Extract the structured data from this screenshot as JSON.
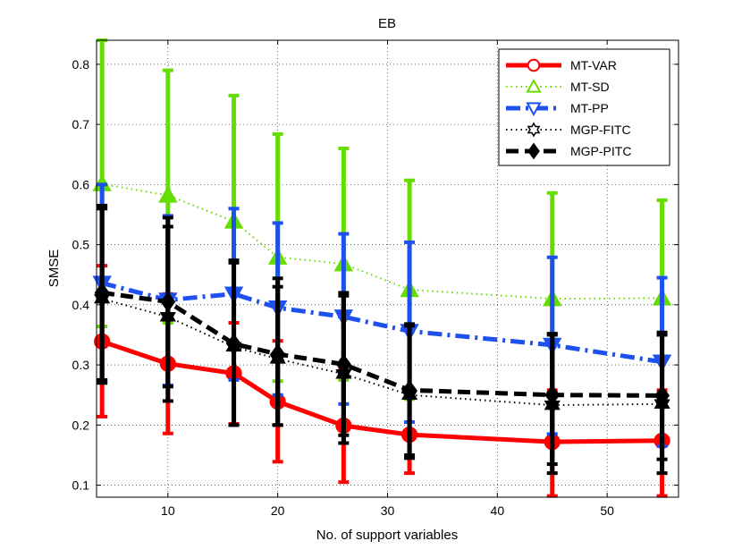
{
  "chart_data": {
    "type": "line",
    "title": "EB",
    "xlabel": "No. of support variables",
    "ylabel": "SMSE",
    "xlim": [
      3.5,
      56.5
    ],
    "ylim": [
      0.08,
      0.84
    ],
    "xticks": [
      10,
      20,
      30,
      40,
      50
    ],
    "yticks": [
      0.1,
      0.2,
      0.3,
      0.4,
      0.5,
      0.6,
      0.7,
      0.8
    ],
    "grid": true,
    "legend_position": "top-right",
    "x": [
      4,
      10,
      16,
      20,
      26,
      32,
      45,
      55
    ],
    "series": [
      {
        "name": "MT-VAR",
        "color": "#ff0000",
        "dash": "solid",
        "marker": "circle",
        "values": [
          0.339,
          0.302,
          0.286,
          0.239,
          0.199,
          0.184,
          0.172,
          0.174
        ],
        "err_low": [
          0.214,
          0.186,
          0.202,
          0.139,
          0.105,
          0.12,
          0.082,
          0.082
        ],
        "err_high": [
          0.465,
          0.418,
          0.37,
          0.34,
          0.295,
          0.25,
          0.258,
          0.258
        ]
      },
      {
        "name": "MT-SD",
        "color": "#66dd00",
        "dash": "dotted",
        "marker": "triangle-up",
        "values": [
          0.601,
          0.582,
          0.539,
          0.479,
          0.468,
          0.425,
          0.41,
          0.411
        ],
        "err_low": [
          0.364,
          0.37,
          0.332,
          0.273,
          0.275,
          0.243,
          0.235,
          0.25
        ],
        "err_high": [
          0.84,
          0.79,
          0.748,
          0.684,
          0.66,
          0.607,
          0.586,
          0.574
        ]
      },
      {
        "name": "MT-PP",
        "color": "#1e50f0",
        "dash": "dashdot",
        "marker": "triangle-down",
        "values": [
          0.436,
          0.408,
          0.418,
          0.395,
          0.38,
          0.356,
          0.333,
          0.305
        ],
        "err_low": [
          0.272,
          0.266,
          0.275,
          0.25,
          0.235,
          0.205,
          0.185,
          0.165
        ],
        "err_high": [
          0.6,
          0.548,
          0.56,
          0.536,
          0.518,
          0.504,
          0.479,
          0.445
        ]
      },
      {
        "name": "MGP-FITC",
        "color": "#000000",
        "dash": "dotted",
        "marker": "hexagram",
        "values": [
          0.41,
          0.38,
          0.33,
          0.31,
          0.285,
          0.25,
          0.233,
          0.235
        ],
        "err_low": [
          0.27,
          0.24,
          0.2,
          0.2,
          0.17,
          0.145,
          0.12,
          0.12
        ],
        "err_high": [
          0.56,
          0.53,
          0.47,
          0.43,
          0.415,
          0.365,
          0.35,
          0.35
        ]
      },
      {
        "name": "MGP-PITC",
        "color": "#000000",
        "dash": "dashed",
        "marker": "diamond",
        "values": [
          0.42,
          0.405,
          0.335,
          0.318,
          0.301,
          0.258,
          0.25,
          0.249
        ],
        "err_low": [
          0.275,
          0.264,
          0.2,
          0.2,
          0.183,
          0.15,
          0.135,
          0.143
        ],
        "err_high": [
          0.565,
          0.545,
          0.474,
          0.444,
          0.42,
          0.368,
          0.352,
          0.354
        ]
      }
    ]
  }
}
